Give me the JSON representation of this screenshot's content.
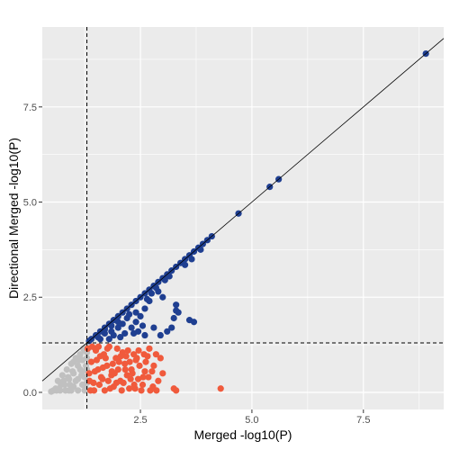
{
  "chart_data": {
    "type": "scatter",
    "title": "",
    "xlabel": "Merged -log10(P)",
    "ylabel": "Directional Merged -log10(P)",
    "xlim": [
      0.3,
      9.3
    ],
    "ylim": [
      -0.45,
      9.6
    ],
    "x_ticks": [
      2.5,
      5.0,
      7.5
    ],
    "y_ticks": [
      0.0,
      2.5,
      5.0,
      7.5
    ],
    "x_tick_labels": [
      "2.5",
      "5.0",
      "7.5"
    ],
    "y_tick_labels": [
      "0.0",
      "2.5",
      "5.0",
      "7.5"
    ],
    "grid": true,
    "legend": "none",
    "threshold_x": 1.3,
    "threshold_y": 1.3,
    "reference_line": {
      "slope": 1,
      "intercept": 0
    },
    "colors": {
      "panel": "#ebebeb",
      "grid": "#ffffff",
      "significant_both": "#1f3f91",
      "significant_merged_only": "#f05a3c",
      "not_significant": "#c0c0c0"
    },
    "series": [
      {
        "color_key": "significant_both",
        "points": [
          [
            8.9,
            8.9
          ],
          [
            5.6,
            5.6
          ],
          [
            5.4,
            5.4
          ],
          [
            4.7,
            4.7
          ],
          [
            4.1,
            4.1
          ],
          [
            4.0,
            4.0
          ],
          [
            3.9,
            3.9
          ],
          [
            3.8,
            3.8
          ],
          [
            3.7,
            3.7
          ],
          [
            3.6,
            3.6
          ],
          [
            3.5,
            3.5
          ],
          [
            3.4,
            3.4
          ],
          [
            3.3,
            3.3
          ],
          [
            3.2,
            3.2
          ],
          [
            3.1,
            3.1
          ],
          [
            3.0,
            3.0
          ],
          [
            2.9,
            2.9
          ],
          [
            2.8,
            2.8
          ],
          [
            2.7,
            2.7
          ],
          [
            2.6,
            2.6
          ],
          [
            2.5,
            2.5
          ],
          [
            2.4,
            2.4
          ],
          [
            2.3,
            2.3
          ],
          [
            2.2,
            2.2
          ],
          [
            2.1,
            2.1
          ],
          [
            2.0,
            2.0
          ],
          [
            1.9,
            1.9
          ],
          [
            1.8,
            1.8
          ],
          [
            1.7,
            1.7
          ],
          [
            1.6,
            1.6
          ],
          [
            1.5,
            1.5
          ],
          [
            1.4,
            1.4
          ],
          [
            1.35,
            1.35
          ],
          [
            1.55,
            1.45
          ],
          [
            1.7,
            1.55
          ],
          [
            1.85,
            1.6
          ],
          [
            2.0,
            1.7
          ],
          [
            2.1,
            1.8
          ],
          [
            1.9,
            1.5
          ],
          [
            2.2,
            1.95
          ],
          [
            2.3,
            1.7
          ],
          [
            2.4,
            1.85
          ],
          [
            2.5,
            2.0
          ],
          [
            2.45,
            1.6
          ],
          [
            2.6,
            2.2
          ],
          [
            2.7,
            2.4
          ],
          [
            2.75,
            2.6
          ],
          [
            2.8,
            1.7
          ],
          [
            2.55,
            1.75
          ],
          [
            2.35,
            1.55
          ],
          [
            2.05,
            1.45
          ],
          [
            1.8,
            1.4
          ],
          [
            1.6,
            1.4
          ],
          [
            2.6,
            1.5
          ],
          [
            2.9,
            2.65
          ],
          [
            3.0,
            2.5
          ],
          [
            3.3,
            2.3
          ],
          [
            3.3,
            2.15
          ],
          [
            3.35,
            2.1
          ],
          [
            3.25,
            1.95
          ],
          [
            3.6,
            1.9
          ],
          [
            3.7,
            1.85
          ],
          [
            3.1,
            1.6
          ],
          [
            3.2,
            1.7
          ],
          [
            2.95,
            1.5
          ],
          [
            2.4,
            2.1
          ],
          [
            2.25,
            2.05
          ],
          [
            2.0,
            1.85
          ],
          [
            1.85,
            1.75
          ],
          [
            1.7,
            1.65
          ],
          [
            2.15,
            1.55
          ],
          [
            2.65,
            2.45
          ],
          [
            3.5,
            3.35
          ],
          [
            3.65,
            3.5
          ],
          [
            3.85,
            3.75
          ],
          [
            2.85,
            2.75
          ],
          [
            3.05,
            2.95
          ],
          [
            3.15,
            3.05
          ]
        ]
      },
      {
        "color_key": "significant_merged_only",
        "points": [
          [
            4.3,
            0.1
          ],
          [
            3.3,
            0.05
          ],
          [
            3.25,
            0.1
          ],
          [
            3.0,
            0.5
          ],
          [
            2.9,
            0.3
          ],
          [
            2.8,
            0.7
          ],
          [
            2.85,
            1.0
          ],
          [
            2.7,
            1.15
          ],
          [
            2.6,
            0.55
          ],
          [
            2.55,
            0.2
          ],
          [
            2.45,
            0.35
          ],
          [
            2.4,
            0.85
          ],
          [
            2.35,
            1.0
          ],
          [
            2.3,
            0.6
          ],
          [
            2.25,
            0.1
          ],
          [
            2.2,
            0.45
          ],
          [
            2.15,
            0.75
          ],
          [
            2.1,
            1.05
          ],
          [
            2.05,
            0.3
          ],
          [
            2.0,
            0.6
          ],
          [
            1.95,
            0.9
          ],
          [
            1.9,
            0.15
          ],
          [
            1.85,
            0.45
          ],
          [
            1.8,
            1.2
          ],
          [
            1.75,
            0.7
          ],
          [
            1.7,
            0.05
          ],
          [
            1.65,
            0.35
          ],
          [
            1.6,
            0.95
          ],
          [
            1.55,
            0.6
          ],
          [
            1.5,
            1.1
          ],
          [
            1.45,
            0.25
          ],
          [
            1.4,
            0.8
          ],
          [
            1.35,
            0.5
          ],
          [
            1.32,
            1.15
          ],
          [
            1.38,
            0.05
          ],
          [
            1.48,
            0.55
          ],
          [
            1.58,
            0.2
          ],
          [
            1.68,
            1.0
          ],
          [
            1.78,
            0.3
          ],
          [
            1.88,
            0.75
          ],
          [
            1.98,
            1.15
          ],
          [
            2.08,
            0.05
          ],
          [
            2.18,
            0.95
          ],
          [
            2.28,
            0.35
          ],
          [
            2.38,
            0.1
          ],
          [
            2.48,
            0.7
          ],
          [
            2.58,
            1.0
          ],
          [
            2.68,
            0.4
          ],
          [
            2.78,
            0.15
          ],
          [
            2.95,
            0.9
          ],
          [
            1.42,
            1.2
          ],
          [
            1.52,
            0.85
          ],
          [
            1.62,
            0.4
          ],
          [
            1.72,
            0.9
          ],
          [
            1.82,
            0.1
          ],
          [
            1.92,
            0.5
          ],
          [
            2.02,
            0.8
          ],
          [
            2.12,
            0.25
          ],
          [
            2.22,
            1.1
          ],
          [
            2.32,
            0.5
          ],
          [
            2.42,
            0.9
          ],
          [
            2.52,
            0.05
          ],
          [
            2.62,
            0.8
          ],
          [
            2.72,
            0.05
          ],
          [
            1.36,
            0.3
          ],
          [
            1.46,
            0.05
          ],
          [
            1.56,
            1.2
          ],
          [
            1.66,
            0.65
          ],
          [
            1.76,
            1.15
          ],
          [
            1.86,
            0.55
          ],
          [
            1.96,
            0.25
          ],
          [
            2.06,
            0.95
          ],
          [
            2.16,
            0.6
          ],
          [
            2.26,
            0.8
          ],
          [
            2.36,
            0.2
          ],
          [
            2.46,
            1.1
          ],
          [
            2.56,
            0.4
          ],
          [
            2.66,
            0.95
          ],
          [
            2.76,
            0.55
          ],
          [
            2.86,
            0.05
          ]
        ]
      },
      {
        "color_key": "not_significant",
        "points": [
          [
            0.5,
            0.02
          ],
          [
            0.6,
            0.1
          ],
          [
            0.65,
            0.3
          ],
          [
            0.7,
            0.05
          ],
          [
            0.75,
            0.45
          ],
          [
            0.8,
            0.2
          ],
          [
            0.85,
            0.6
          ],
          [
            0.9,
            0.05
          ],
          [
            0.9,
            0.35
          ],
          [
            0.95,
            0.75
          ],
          [
            1.0,
            0.15
          ],
          [
            1.0,
            0.5
          ],
          [
            1.05,
            0.9
          ],
          [
            1.1,
            0.05
          ],
          [
            1.1,
            0.35
          ],
          [
            1.1,
            0.7
          ],
          [
            1.15,
            1.0
          ],
          [
            1.2,
            0.2
          ],
          [
            1.2,
            0.55
          ],
          [
            1.2,
            0.85
          ],
          [
            1.25,
            1.1
          ],
          [
            1.25,
            0.05
          ],
          [
            1.25,
            0.4
          ],
          [
            1.28,
            0.7
          ],
          [
            1.28,
            1.2
          ],
          [
            1.3,
            0.25
          ],
          [
            1.3,
            0.9
          ],
          [
            1.22,
            1.15
          ],
          [
            1.18,
            0.45
          ],
          [
            1.12,
            0.85
          ],
          [
            1.05,
            0.3
          ],
          [
            0.98,
            0.55
          ],
          [
            0.92,
            0.2
          ],
          [
            0.88,
            0.4
          ],
          [
            0.82,
            0.05
          ],
          [
            0.78,
            0.3
          ],
          [
            0.72,
            0.2
          ],
          [
            0.68,
            0.1
          ],
          [
            0.62,
            0.05
          ],
          [
            0.55,
            0.05
          ],
          [
            1.3,
            0.6
          ],
          [
            1.15,
            0.6
          ],
          [
            1.0,
            0.8
          ],
          [
            0.95,
            0.05
          ],
          [
            1.27,
            0.1
          ],
          [
            1.3,
            1.05
          ]
        ]
      }
    ]
  }
}
